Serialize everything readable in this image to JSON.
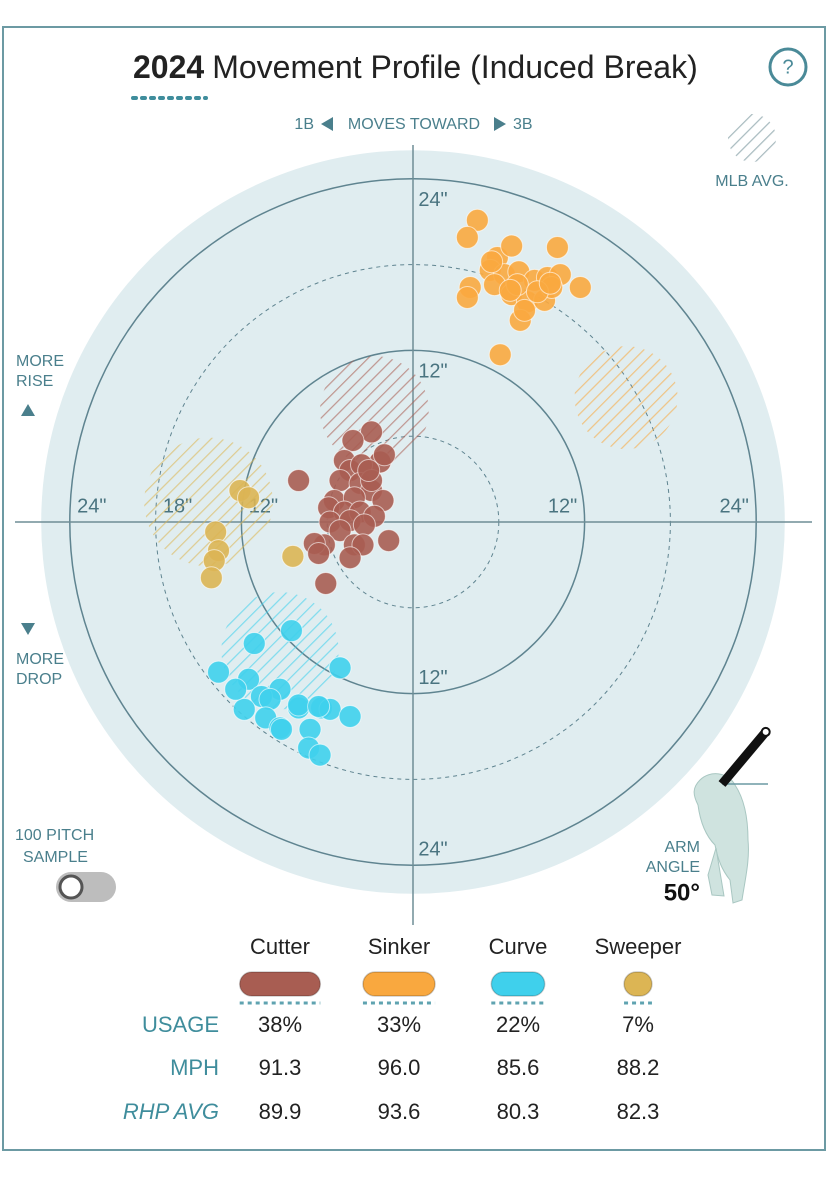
{
  "chart_data": {
    "type": "scatter",
    "title_year": "2024",
    "title": "Movement Profile (Induced Break)",
    "help": "?",
    "direction_left": "1B",
    "direction_text": "MOVES TOWARD",
    "direction_right": "3B",
    "legend_avg": "MLB AVG.",
    "rise_label": [
      "MORE",
      "RISE"
    ],
    "drop_label": [
      "MORE",
      "DROP"
    ],
    "sample_label": [
      "100 PITCH",
      "SAMPLE"
    ],
    "arm_angle": {
      "label": [
        "ARM",
        "ANGLE"
      ],
      "value": 50,
      "value_label": "50°"
    },
    "xlim": [
      -26,
      26
    ],
    "ylim": [
      -26,
      26
    ],
    "rings": [
      {
        "value": 6,
        "dashed": true
      },
      {
        "value": 12,
        "dashed": false
      },
      {
        "value": 18,
        "dashed": true
      },
      {
        "value": 24,
        "dashed": false
      }
    ],
    "xticks": [
      {
        "value": -24,
        "label": "24\""
      },
      {
        "value": -18,
        "label": "18\""
      },
      {
        "value": -12,
        "label": "12\""
      },
      {
        "value": 12,
        "label": "12\""
      },
      {
        "value": 24,
        "label": "24\""
      }
    ],
    "yticks": [
      {
        "value": 24,
        "label": "24\""
      },
      {
        "value": 12,
        "label": "12\""
      },
      {
        "value": -12,
        "label": "12\""
      },
      {
        "value": -24,
        "label": "24\""
      }
    ],
    "row_labels": [
      "USAGE",
      "MPH",
      "RHP AVG"
    ],
    "series": [
      {
        "name": "Cutter",
        "color": "#a85d52",
        "usage": "38%",
        "mph": "91.3",
        "rhp_avg": "89.9",
        "avg": {
          "x": -2.7,
          "y": 7.8,
          "r": 3.8
        },
        "x": [
          -2.9,
          -4.2,
          -4.8,
          -4.4,
          -2.3,
          -2.0,
          -3.6,
          -8.0,
          -5.1,
          -3.7,
          -2.9,
          -5.5,
          -4.1,
          -2.1,
          -5.9,
          -4.8,
          -3.7,
          -2.7,
          -5.8,
          -4.4,
          -3.4,
          -5.1,
          -6.2,
          -6.9,
          -4.1,
          -3.5,
          -1.7,
          -4.4,
          -6.6,
          -6.1,
          -2.9,
          -3.1
        ],
        "y": [
          6.3,
          5.7,
          4.3,
          3.6,
          4.2,
          4.7,
          4.0,
          2.9,
          2.9,
          2.7,
          2.2,
          1.5,
          1.7,
          1.5,
          1.0,
          0.7,
          0.7,
          0.4,
          0,
          0.1,
          -0.2,
          -0.6,
          -1.6,
          -1.5,
          -1.6,
          -1.6,
          -1.3,
          -2.5,
          -2.2,
          -4.3,
          2.9,
          3.6
        ]
      },
      {
        "name": "Sinker",
        "color": "#f9a83f",
        "usage": "33%",
        "mph": "96.0",
        "rhp_avg": "93.6",
        "avg": {
          "x": 14.9,
          "y": 8.7,
          "r": 3.6
        },
        "x": [
          4.5,
          3.8,
          5.9,
          6.9,
          10.1,
          5.4,
          6.4,
          7.4,
          8.5,
          9.4,
          10.3,
          11.7,
          5.7,
          4.0,
          3.8,
          6.9,
          8.0,
          9.2,
          9.7,
          7.5,
          7.8,
          6.1,
          7.3,
          8.7,
          5.5,
          6.8,
          9.6
        ],
        "y": [
          21.1,
          19.9,
          18.5,
          19.3,
          19.2,
          17.6,
          17.3,
          17.5,
          16.9,
          17.1,
          17.3,
          16.4,
          16.6,
          16.4,
          15.7,
          15.9,
          15.4,
          15.5,
          16.4,
          14.1,
          14.8,
          11.7,
          16.6,
          16.1,
          18.2,
          16.2,
          16.7
        ]
      },
      {
        "name": "Curve",
        "color": "#3fd0ec",
        "usage": "22%",
        "mph": "85.6",
        "rhp_avg": "80.3",
        "avg": {
          "x": -9.3,
          "y": -9.0,
          "r": 4.1
        },
        "x": [
          -8.5,
          -11.1,
          -13.6,
          -5.1,
          -11.5,
          -9.3,
          -10.6,
          -11.8,
          -10.0,
          -8.0,
          -6.4,
          -5.8,
          -4.4,
          -10.3,
          -9.3,
          -8.0,
          -6.6,
          -7.2,
          -9.2,
          -7.3,
          -6.5,
          -12.4
        ],
        "y": [
          -7.6,
          -8.5,
          -10.5,
          -10.2,
          -11.0,
          -11.7,
          -12.2,
          -13.1,
          -12.4,
          -13.0,
          -13.0,
          -13.1,
          -13.6,
          -13.7,
          -14.4,
          -12.8,
          -12.9,
          -14.5,
          -14.5,
          -15.8,
          -16.3,
          -11.7
        ]
      },
      {
        "name": "Sweeper",
        "color": "#dcb554",
        "usage": "7%",
        "mph": "88.2",
        "rhp_avg": "82.3",
        "avg": {
          "x": -14.3,
          "y": 1.4,
          "r": 4.5
        },
        "x": [
          -12.1,
          -11.5,
          -13.8,
          -13.6,
          -13.9,
          -14.1,
          -8.4
        ],
        "y": [
          2.2,
          1.7,
          -0.7,
          -2.0,
          -2.7,
          -3.9,
          -2.4
        ]
      }
    ]
  }
}
